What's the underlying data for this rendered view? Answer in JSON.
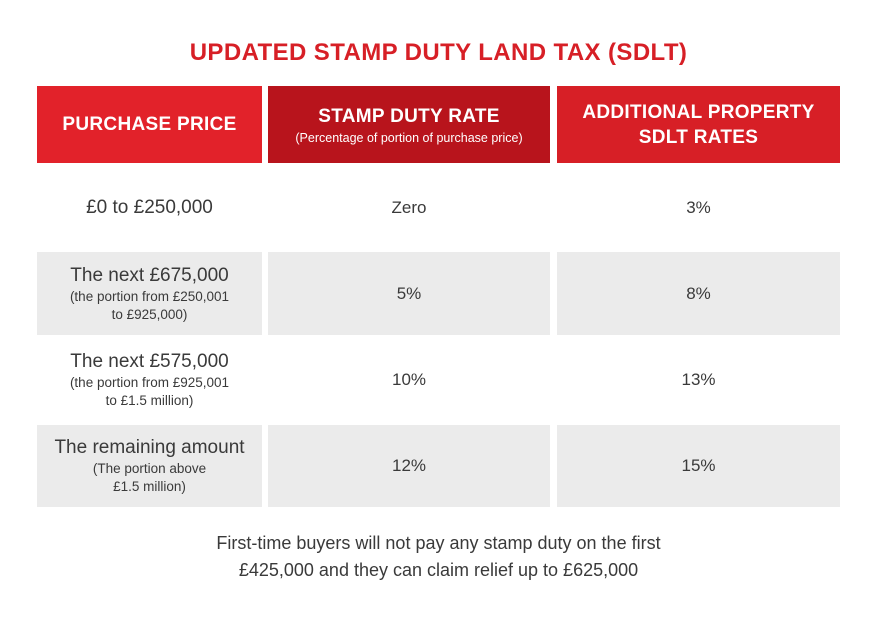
{
  "title": "UPDATED STAMP DUTY LAND TAX (SDLT)",
  "header": {
    "col1": "PURCHASE PRICE",
    "col2": "STAMP DUTY RATE",
    "col2_sub": "(Percentage of portion of purchase price)",
    "col3_line1": "ADDITIONAL PROPERTY",
    "col3_line2": "SDLT RATES"
  },
  "rows": [
    {
      "price": "£0 to £250,000",
      "note_line1": "",
      "note_line2": "",
      "rate": "Zero",
      "additional": "3%"
    },
    {
      "price": "The next £675,000",
      "note_line1": "(the portion from £250,001",
      "note_line2": "to £925,000)",
      "rate": "5%",
      "additional": "8%"
    },
    {
      "price": "The next £575,000",
      "note_line1": "(the portion from £925,001",
      "note_line2": "to £1.5 million)",
      "rate": "10%",
      "additional": "13%"
    },
    {
      "price": "The remaining amount",
      "note_line1": "(The portion above",
      "note_line2": "£1.5 million)",
      "rate": "12%",
      "additional": "15%"
    }
  ],
  "footer": {
    "line1": "First-time buyers will not pay any stamp duty on the first",
    "line2": "£425,000 and they can claim relief up to £625,000"
  },
  "colors": {
    "accent_red": "#d71f26",
    "dark_red": "#b8141c",
    "row_shade": "#ebebeb",
    "text": "#3a3a3a"
  }
}
